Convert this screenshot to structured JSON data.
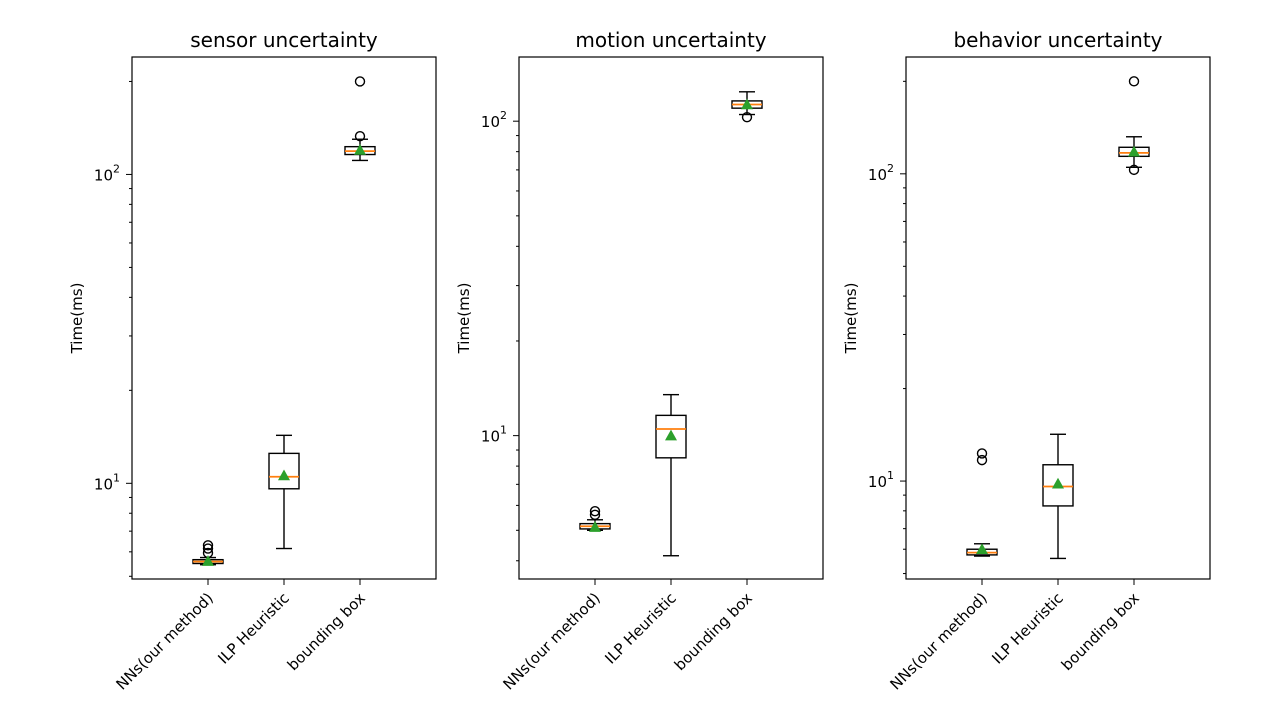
{
  "chart_data": [
    {
      "type": "box",
      "title": "sensor uncertainty",
      "ylabel": "Time(ms)",
      "yscale": "log",
      "ylim": [
        4.9,
        240
      ],
      "yticks": [
        {
          "value": 10,
          "base": "10",
          "exp": "1"
        },
        {
          "value": 100,
          "base": "10",
          "exp": "2"
        }
      ],
      "categories": [
        "NNs(our method)",
        "ILP Heuristic",
        "bounding box"
      ],
      "boxes": [
        {
          "whislo": 5.45,
          "q1": 5.5,
          "med": 5.58,
          "q3": 5.66,
          "whishi": 5.75,
          "mean": 5.6,
          "fliers": [
            5.95,
            6.15,
            6.3
          ]
        },
        {
          "whislo": 6.15,
          "q1": 9.6,
          "med": 10.5,
          "q3": 12.5,
          "whishi": 14.3,
          "mean": 10.6,
          "fliers": []
        },
        {
          "whislo": 111,
          "q1": 116,
          "med": 119,
          "q3": 123,
          "whishi": 130,
          "mean": 120,
          "fliers": [
            133,
            200
          ]
        }
      ]
    },
    {
      "type": "box",
      "title": "motion uncertainty",
      "ylabel": "Time(ms)",
      "yscale": "log",
      "ylim": [
        3.5,
        160
      ],
      "yticks": [
        {
          "value": 10,
          "base": "10",
          "exp": "1"
        },
        {
          "value": 100,
          "base": "10",
          "exp": "2"
        }
      ],
      "categories": [
        "NNs(our method)",
        "ILP Heuristic",
        "bounding box"
      ],
      "boxes": [
        {
          "whislo": 5.0,
          "q1": 5.05,
          "med": 5.15,
          "q3": 5.25,
          "whishi": 5.4,
          "mean": 5.12,
          "fliers": [
            5.6,
            5.75
          ]
        },
        {
          "whislo": 4.15,
          "q1": 8.5,
          "med": 10.5,
          "q3": 11.6,
          "whishi": 13.5,
          "mean": 10.0,
          "fliers": []
        },
        {
          "whislo": 105,
          "q1": 110,
          "med": 113,
          "q3": 116,
          "whishi": 124,
          "mean": 113,
          "fliers": [
            103
          ]
        }
      ]
    },
    {
      "type": "box",
      "title": "behavior uncertainty",
      "ylabel": "Time(ms)",
      "yscale": "log",
      "ylim": [
        4.8,
        240
      ],
      "yticks": [
        {
          "value": 10,
          "base": "10",
          "exp": "1"
        },
        {
          "value": 100,
          "base": "10",
          "exp": "2"
        }
      ],
      "categories": [
        "NNs(our method)",
        "ILP Heuristic",
        "bounding box"
      ],
      "boxes": [
        {
          "whislo": 5.7,
          "q1": 5.75,
          "med": 5.85,
          "q3": 6.0,
          "whishi": 6.25,
          "mean": 6.0,
          "fliers": [
            11.7,
            12.3
          ]
        },
        {
          "whislo": 5.6,
          "q1": 8.3,
          "med": 9.6,
          "q3": 11.3,
          "whishi": 14.2,
          "mean": 9.8,
          "fliers": []
        },
        {
          "whislo": 105,
          "q1": 114,
          "med": 117,
          "q3": 122,
          "whishi": 132,
          "mean": 118,
          "fliers": [
            103,
            200
          ]
        }
      ]
    }
  ],
  "colors": {
    "median": "#ff7f0e",
    "mean": "#2ca02c",
    "frame": "#000000"
  }
}
